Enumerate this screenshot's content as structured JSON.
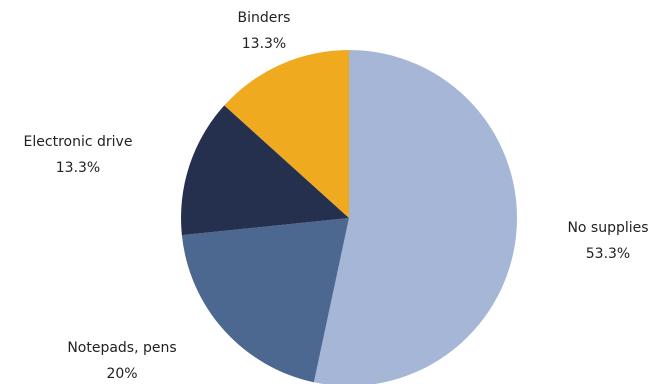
{
  "chart_data": {
    "type": "pie",
    "title": "",
    "start": "12 o'clock",
    "direction": "clockwise",
    "slices": [
      {
        "label": "No supplies",
        "value": 53.3,
        "value_label": "53.3%",
        "color": "#a5b6d6"
      },
      {
        "label": "Notepads, pens",
        "value": 20,
        "value_label": "20%",
        "color": "#4c6890"
      },
      {
        "label": "Electronic drive",
        "value": 13.3,
        "value_label": "13.3%",
        "color": "#25304e"
      },
      {
        "label": "Binders",
        "value": 13.3,
        "value_label": "13.3%",
        "color": "#f0aa20"
      }
    ]
  }
}
